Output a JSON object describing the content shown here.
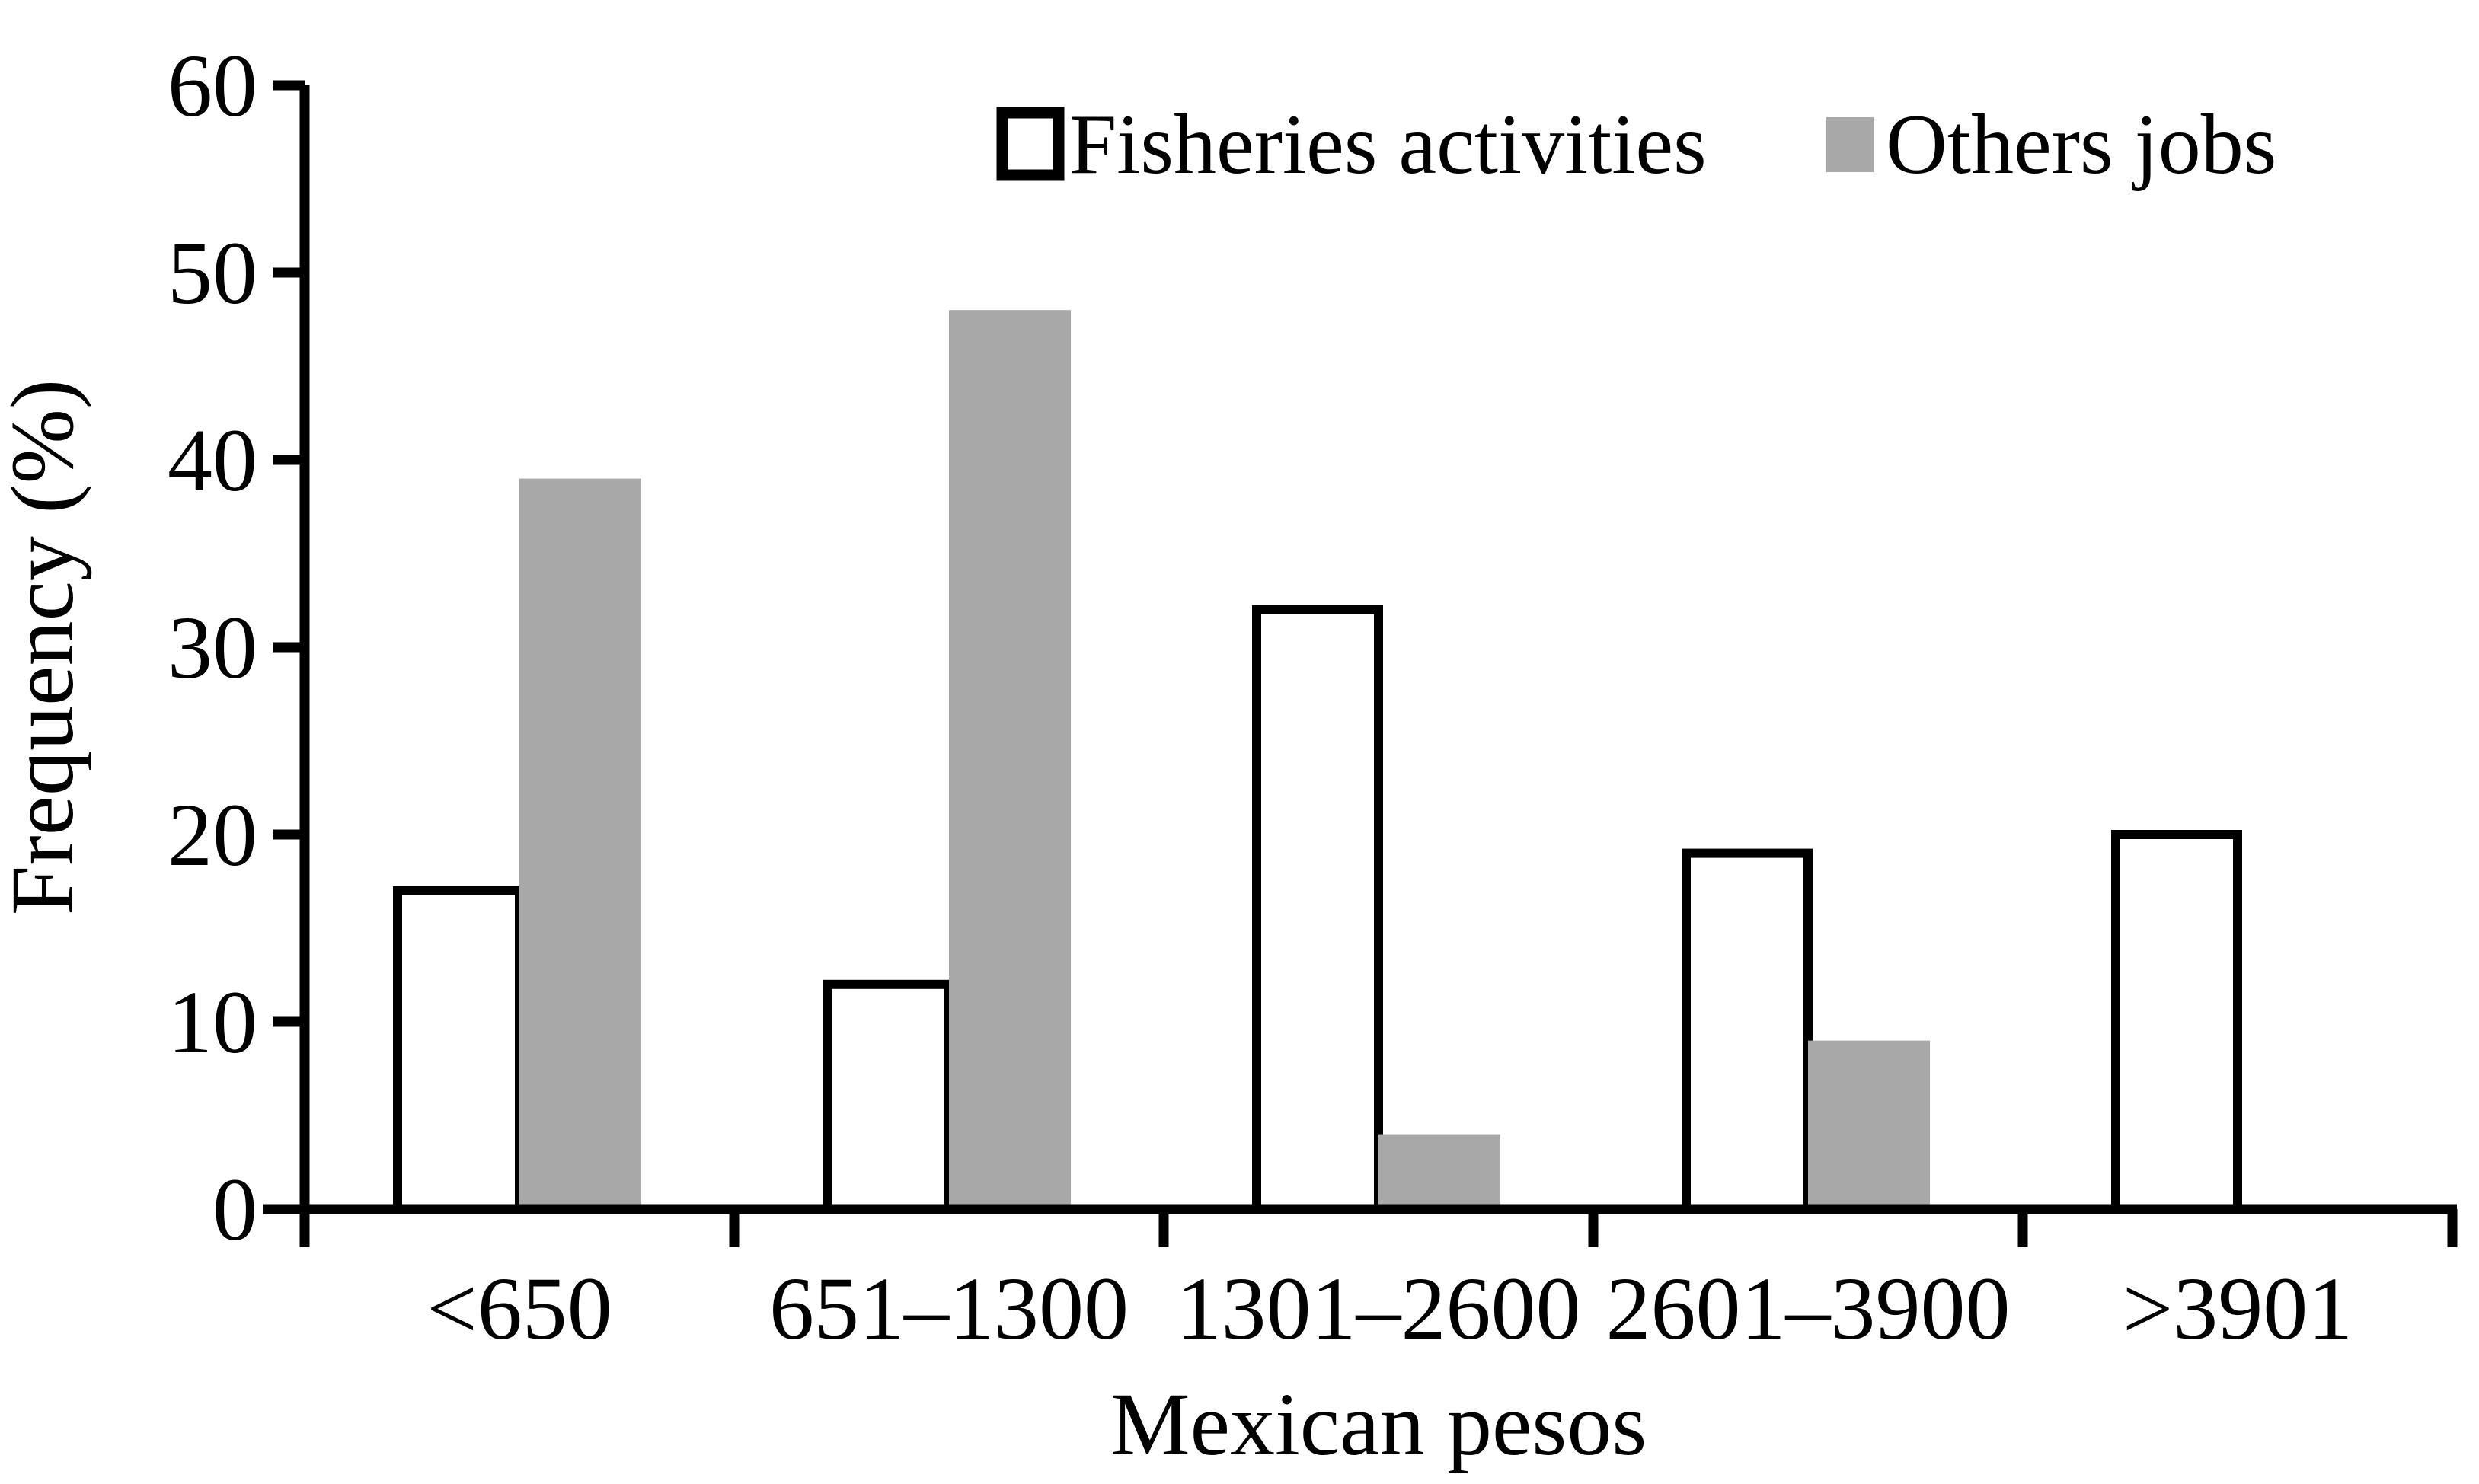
{
  "chart_data": {
    "type": "bar",
    "title": "",
    "categories": [
      "<650",
      "651–1300",
      "1301–2600",
      "2601–3900",
      ">3901"
    ],
    "series": [
      {
        "name": "Fisheries activities",
        "values": [
          17,
          12,
          32,
          19,
          20
        ],
        "fill": "#ffffff",
        "stroke": "#000000"
      },
      {
        "name": "Others jobs",
        "values": [
          39,
          48,
          4,
          9,
          0
        ],
        "fill": "#a8a8a8",
        "stroke": "none"
      }
    ],
    "xlabel": "Mexican pesos",
    "ylabel": "Frequency (%)",
    "ylim": [
      0,
      60
    ],
    "yticks": [
      0,
      10,
      20,
      30,
      40,
      50,
      60
    ],
    "grid": false,
    "legend_position": "top",
    "colors": {
      "axis": "#000000",
      "background": "#ffffff",
      "others_gray": "#a8a8a8"
    }
  }
}
